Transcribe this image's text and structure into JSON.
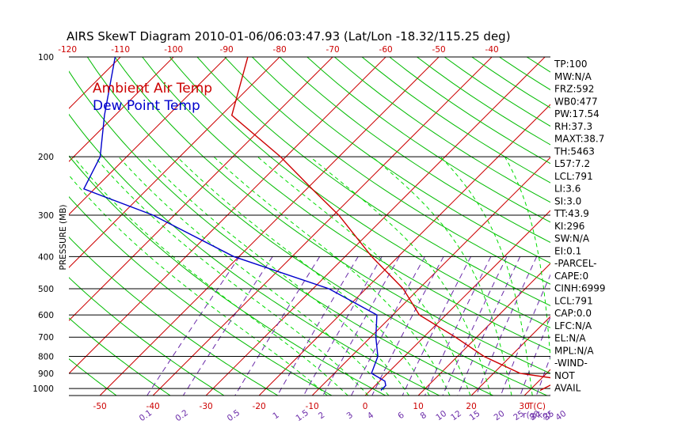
{
  "title": "AIRS SkewT Diagram 2010-01-06/06:03:47.93 (Lat/Lon -18.32/115.25 deg)",
  "y_axis_label": "PRESSURE (MB)",
  "legend": [
    {
      "label": "Ambient Air Temp",
      "color": "#cc0000"
    },
    {
      "label": "Dew Point Temp",
      "color": "#0000cc"
    }
  ],
  "colors": {
    "isotherm": "#cc0000",
    "dry_adiabat": "#00bb00",
    "moist_adiabat": "#00dd00",
    "mixing_ratio": "#6a2aa8",
    "isobar": "#000000",
    "temperature": "#cc0000",
    "dewpoint": "#0000cc",
    "bottom_temp_labels": "#cc0000",
    "mixing_ratio_labels": "#6a2aa8"
  },
  "side_panel": [
    "TP:100",
    "MW:N/A",
    "FRZ:592",
    "WB0:477",
    "PW:17.54",
    "RH:37.3",
    "MAXT:38.7",
    "TH:5463",
    "L57:7.2",
    "LCL:791",
    "LI:3.6",
    "SI:3.0",
    "TT:43.9",
    "KI:296",
    "SW:N/A",
    "EI:0.1",
    "-PARCEL-",
    "CAPE:0",
    "CINH:6999",
    "LCL:791",
    "CAP:0.0",
    "LFC:N/A",
    "EL:N/A",
    "MPL:N/A",
    "-WIND-",
    "NOT",
    "AVAIL"
  ],
  "chart_data": {
    "type": "line",
    "title": "AIRS SkewT Diagram 2010-01-06/06:03:47.93 (Lat/Lon -18.32/115.25 deg)",
    "ylabel": "PRESSURE (MB)",
    "y_scale": "log",
    "y_direction": "pressure decreasing upward",
    "ylim": [
      1050,
      100
    ],
    "pressure_ticks": [
      100,
      200,
      300,
      400,
      500,
      600,
      700,
      800,
      900,
      1000
    ],
    "top_temp_ticks": [
      -120,
      -110,
      -100,
      -90,
      -80,
      -70,
      -60,
      -50,
      -40
    ],
    "bottom_temp_ticks": [
      -50,
      -40,
      -30,
      -20,
      -10,
      0,
      10,
      20,
      30
    ],
    "bottom_temp_unit": "T(C)",
    "mixing_ratio_ticks": [
      "0.1",
      "0.2",
      "0.5",
      "1",
      "1.5",
      "2",
      "3",
      "4",
      "6",
      "8",
      "10",
      "12",
      "15",
      "20",
      "25",
      "30",
      "35",
      "40"
    ],
    "mixing_ratio_unit": "r(g/kg)",
    "series": [
      {
        "name": "Ambient Air Temp",
        "points": [
          {
            "p": 100,
            "t": -86
          },
          {
            "p": 150,
            "t": -78
          },
          {
            "p": 200,
            "t": -61
          },
          {
            "p": 250,
            "t": -49
          },
          {
            "p": 300,
            "t": -39
          },
          {
            "p": 400,
            "t": -25
          },
          {
            "p": 500,
            "t": -13
          },
          {
            "p": 600,
            "t": -5
          },
          {
            "p": 700,
            "t": 6
          },
          {
            "p": 800,
            "t": 15
          },
          {
            "p": 900,
            "t": 25
          },
          {
            "p": 930,
            "t": 32
          },
          {
            "p": 975,
            "t": 33
          },
          {
            "p": 1013,
            "t": 32
          }
        ]
      },
      {
        "name": "Dew Point Temp",
        "points": [
          {
            "p": 100,
            "t": -111
          },
          {
            "p": 150,
            "t": -102
          },
          {
            "p": 200,
            "t": -95
          },
          {
            "p": 250,
            "t": -92
          },
          {
            "p": 300,
            "t": -74
          },
          {
            "p": 400,
            "t": -51
          },
          {
            "p": 500,
            "t": -27
          },
          {
            "p": 600,
            "t": -13
          },
          {
            "p": 700,
            "t": -9
          },
          {
            "p": 800,
            "t": -5
          },
          {
            "p": 900,
            "t": -3
          },
          {
            "p": 950,
            "t": 1
          },
          {
            "p": 980,
            "t": 2
          },
          {
            "p": 1013,
            "t": 2
          }
        ]
      }
    ]
  }
}
